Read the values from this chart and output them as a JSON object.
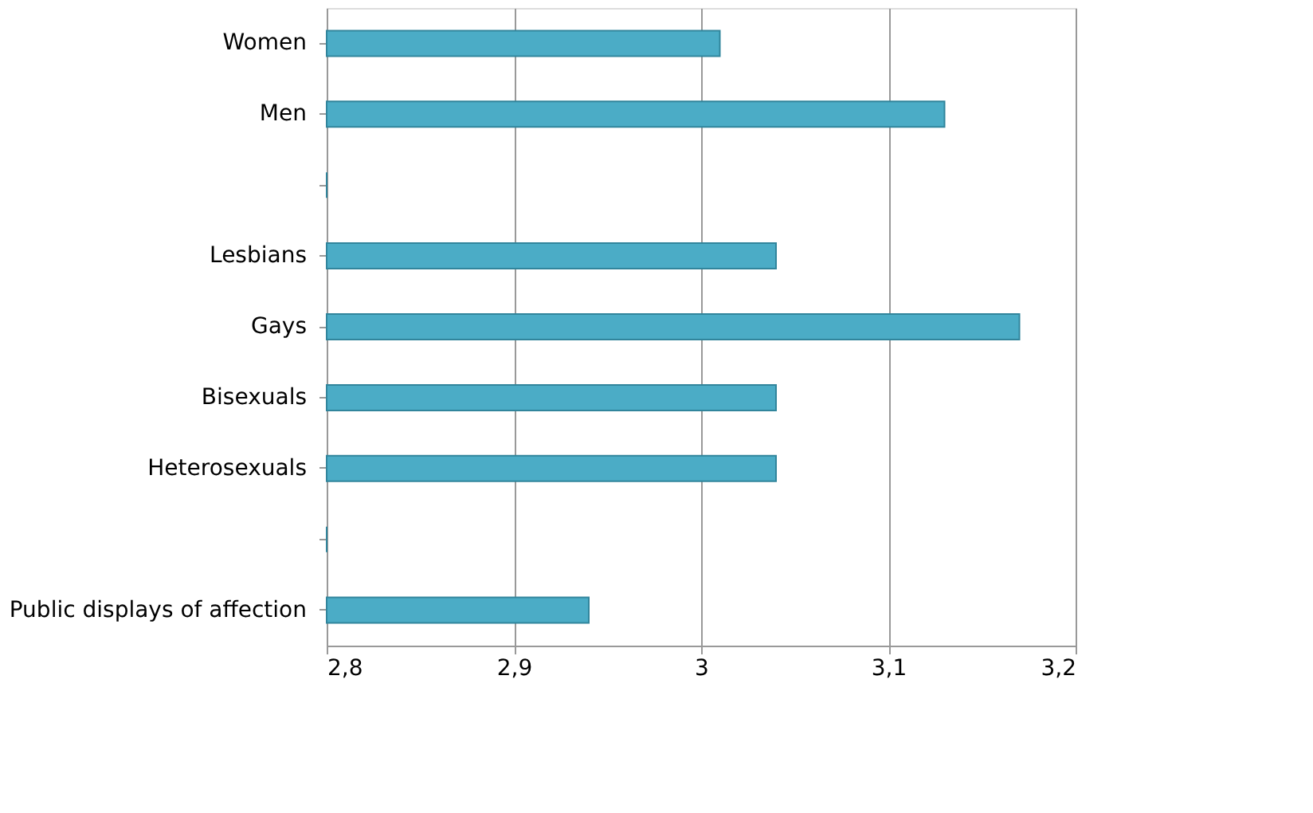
{
  "chart_data": {
    "type": "bar",
    "orientation": "horizontal",
    "categories": [
      "Women",
      "Men",
      null,
      "Lesbians",
      "Gays",
      "Bisexuals",
      "Heterosexuals",
      null,
      "Public displays of affection"
    ],
    "values": [
      3.01,
      3.13,
      null,
      3.04,
      3.17,
      3.04,
      3.04,
      null,
      2.94
    ],
    "color": "#4bacc6",
    "xlim": [
      2.8,
      3.2
    ],
    "xticks": [
      {
        "value": 2.8,
        "label": "2,8"
      },
      {
        "value": 2.9,
        "label": "2,9"
      },
      {
        "value": 3.0,
        "label": "3"
      },
      {
        "value": 3.1,
        "label": "3,1"
      },
      {
        "value": 3.2,
        "label": "3,2"
      }
    ],
    "grid": "x"
  }
}
